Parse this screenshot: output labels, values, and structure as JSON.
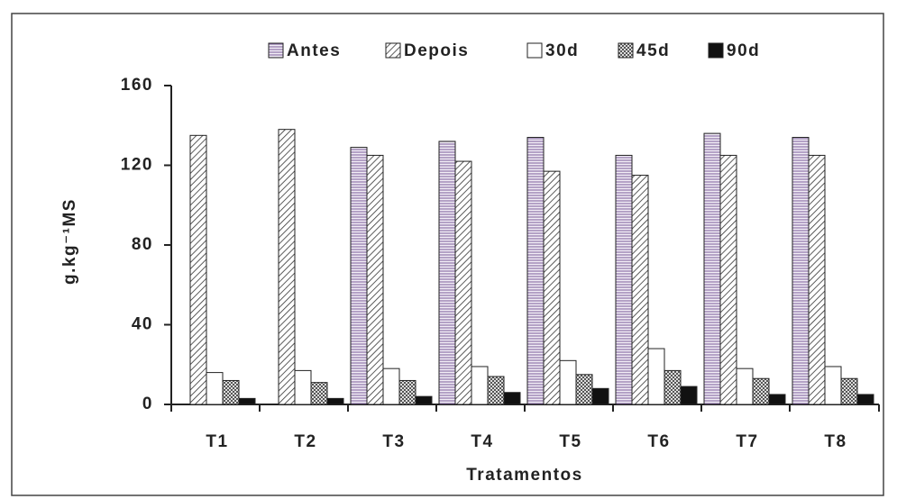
{
  "chart_data": {
    "type": "bar",
    "categories": [
      "T1",
      "T2",
      "T3",
      "T4",
      "T5",
      "T6",
      "T7",
      "T8"
    ],
    "series": [
      {
        "name": "Antes",
        "color": "#9a7fb0",
        "pattern": "horizontal",
        "values": [
          null,
          null,
          129,
          132,
          134,
          125,
          136,
          134
        ]
      },
      {
        "name": "Depois",
        "color": "#333333",
        "pattern": "diagonal",
        "values": [
          135,
          138,
          125,
          122,
          117,
          115,
          125,
          125
        ]
      },
      {
        "name": "30d",
        "color": "#ffffff",
        "pattern": "solid",
        "values": [
          16,
          17,
          18,
          19,
          22,
          28,
          18,
          19
        ]
      },
      {
        "name": "45d",
        "color": "#555555",
        "pattern": "checker",
        "values": [
          12,
          11,
          12,
          14,
          15,
          17,
          13,
          13
        ]
      },
      {
        "name": "90d",
        "color": "#111111",
        "pattern": "solid",
        "values": [
          3,
          3,
          4,
          6,
          8,
          9,
          5,
          5
        ]
      }
    ],
    "ylim": [
      0,
      160
    ],
    "yticks": [
      0,
      40,
      80,
      120,
      160
    ],
    "y_label": "g.kg⁻¹MS",
    "x_label": "Tratamentos",
    "legend": "top"
  }
}
